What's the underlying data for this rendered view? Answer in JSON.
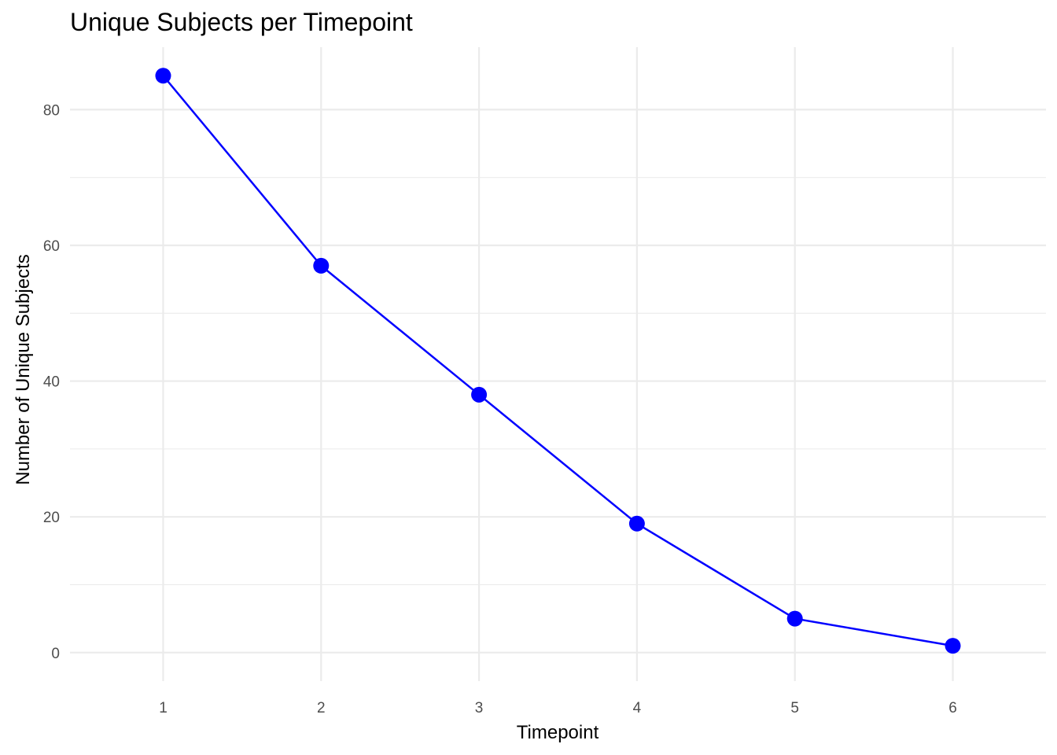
{
  "chart_data": {
    "type": "line",
    "title": "Unique Subjects per Timepoint",
    "xlabel": "Timepoint",
    "ylabel": "Number of Unique Subjects",
    "x": [
      1,
      2,
      3,
      4,
      5,
      6
    ],
    "values": [
      85,
      57,
      38,
      19,
      5,
      1
    ],
    "xlim": [
      0.41,
      6.59
    ],
    "ylim": [
      -4.2,
      89.2
    ],
    "x_ticks": [
      "1",
      "2",
      "3",
      "4",
      "5",
      "6"
    ],
    "y_ticks": [
      "0",
      "20",
      "40",
      "60",
      "80"
    ],
    "y_minor_ticks": [
      10,
      30,
      50,
      70
    ],
    "grid": true,
    "legend": "none",
    "colors": {
      "series": "#0000ff",
      "grid": "#ebebeb",
      "tick_text": "#4d4d4d",
      "text": "#000000"
    }
  }
}
